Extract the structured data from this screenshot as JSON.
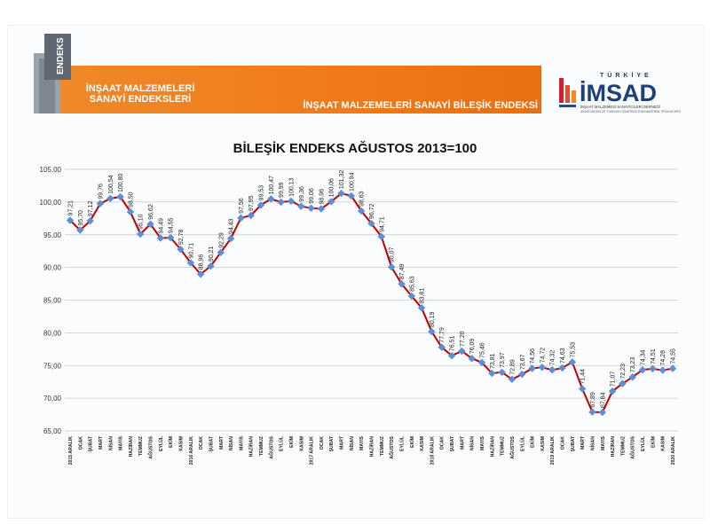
{
  "header": {
    "left_title_line1": "İNŞAAT MALZEMELERİ",
    "left_title_line2": "SANAYİ ENDEKSLERİ",
    "right_title": "İNŞAAT MALZEMELERİ SANAYİ BİLEŞİK ENDEKSİ",
    "endeks_logo_text": "ENDEKS",
    "imsad_top": "TÜRKİYE",
    "imsad_name": "İMSAD",
    "imsad_sub1": "İNŞAAT MALZEMESİ SANAYİCİLERİ DERNEĞİ",
    "imsad_sub2": "ASSOCIATION OF TURKISH CONSTRUCTION MATERIAL PRODUCERS"
  },
  "colors": {
    "orange": "#f07c1e",
    "line": "#c00000",
    "marker": "#5b8fd6",
    "grid": "#c8c8c8"
  },
  "chart_data": {
    "type": "line",
    "title": "BİLEŞİK ENDEKS AĞUSTOS 2013=100",
    "xlabel": "",
    "ylabel": "",
    "ylim": [
      65,
      105
    ],
    "yticks": [
      "65,00",
      "70,00",
      "75,00",
      "80,00",
      "85,00",
      "90,00",
      "95,00",
      "100,00",
      "105,00"
    ],
    "grid": true,
    "categories": [
      "2015 ARALIK",
      "OCAK",
      "ŞUBAT",
      "MART",
      "NİSAN",
      "MAYIS",
      "HAZİRAN",
      "TEMMUZ",
      "AĞUSTOS",
      "EYLÜL",
      "EKİM",
      "KASIM",
      "2016 ARALIK",
      "OCAK",
      "ŞUBAT",
      "MART",
      "NİSAN",
      "MAYIS",
      "HAZİRAN",
      "TEMMUZ",
      "AĞUSTOS",
      "EYLÜL",
      "EKİM",
      "KASIM",
      "2017 ARALIK",
      "OCAK",
      "ŞUBAT",
      "MART",
      "NİSAN",
      "MAYIS",
      "HAZİRAN",
      "TEMMUZ",
      "AĞUSTOS",
      "EYLÜL",
      "EKİM",
      "KASIM",
      "2018 ARALIK",
      "OCAK",
      "ŞUBAT",
      "MART",
      "NİSAN",
      "MAYIS",
      "HAZİRAN",
      "TEMMUZ",
      "AĞUSTOS",
      "EYLÜL",
      "EKİM",
      "KASIM",
      "2019 ARALIK",
      "OCAK",
      "ŞUBAT",
      "MART",
      "NİSAN",
      "MAYIS",
      "HAZİRAN",
      "TEMMUZ",
      "AĞUSTOS",
      "EYLÜL",
      "EKİM",
      "KASIM",
      "2020 ARALIK"
    ],
    "values": [
      97.21,
      95.7,
      97.12,
      99.76,
      100.54,
      100.8,
      98.5,
      95.1,
      96.62,
      94.49,
      94.55,
      92.78,
      90.71,
      88.96,
      90.21,
      92.29,
      94.43,
      97.56,
      97.95,
      99.53,
      100.47,
      99.99,
      100.13,
      99.36,
      99.06,
      98.96,
      100.06,
      101.32,
      100.94,
      98.63,
      96.72,
      94.71,
      90.07,
      87.49,
      85.63,
      83.81,
      80.19,
      77.79,
      76.51,
      77.2,
      76.09,
      75.46,
      73.81,
      73.97,
      72.89,
      73.67,
      74.56,
      74.72,
      74.32,
      74.63,
      75.53,
      71.44,
      67.89,
      67.84,
      71.07,
      72.23,
      73.23,
      74.34,
      74.51,
      74.28,
      74.55
    ],
    "labels": [
      "97,21",
      "95,70",
      "97,12",
      "99,76",
      "100,54",
      "100,80",
      "98,50",
      "95,10",
      "96,62",
      "94,49",
      "94,55",
      "92,78",
      "90,71",
      "88,96",
      "90,21",
      "92,29",
      "94,43",
      "97,56",
      "97,95",
      "99,53",
      "100,47",
      "99,99",
      "100,13",
      "99,36",
      "99,06",
      "98,96",
      "100,06",
      "101,32",
      "100,94",
      "98,63",
      "96,72",
      "94,71",
      "90,07",
      "87,49",
      "85,63",
      "83,81",
      "80,19",
      "77,79",
      "76,51",
      "77,20",
      "76,09",
      "75,46",
      "73,81",
      "73,97",
      "72,89",
      "73,67",
      "74,56",
      "74,72",
      "74,32",
      "74,63",
      "75,53",
      "71,44",
      "67,89",
      "67,84",
      "71,07",
      "72,23",
      "73,23",
      "74,34",
      "74,51",
      "74,28",
      "74,55"
    ]
  }
}
